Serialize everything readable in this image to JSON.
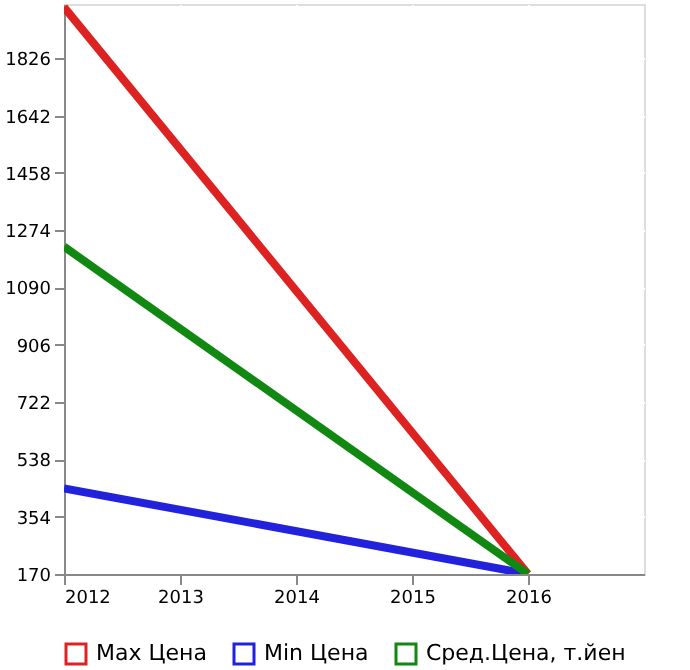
{
  "chart_data": {
    "type": "line",
    "x": [
      2012,
      2016
    ],
    "series": [
      {
        "name": "Max Цена",
        "color": "#dd2222",
        "values": [
          1990,
          170
        ]
      },
      {
        "name": "Min Цена",
        "color": "#2222dd",
        "values": [
          445,
          170
        ]
      },
      {
        "name": "Сред.Цена, т.йен",
        "color": "#118811",
        "values": [
          1221,
          170
        ]
      }
    ],
    "xlim": [
      2012,
      2017
    ],
    "xticks": [
      2012,
      2013,
      2014,
      2015,
      2016
    ],
    "ylim": [
      170,
      2000
    ],
    "yticks": [
      170,
      354,
      538,
      722,
      906,
      1090,
      1274,
      1458,
      1642,
      1826
    ],
    "grid": true,
    "legend": "bottom",
    "marker": "none",
    "line_style": "solid"
  }
}
